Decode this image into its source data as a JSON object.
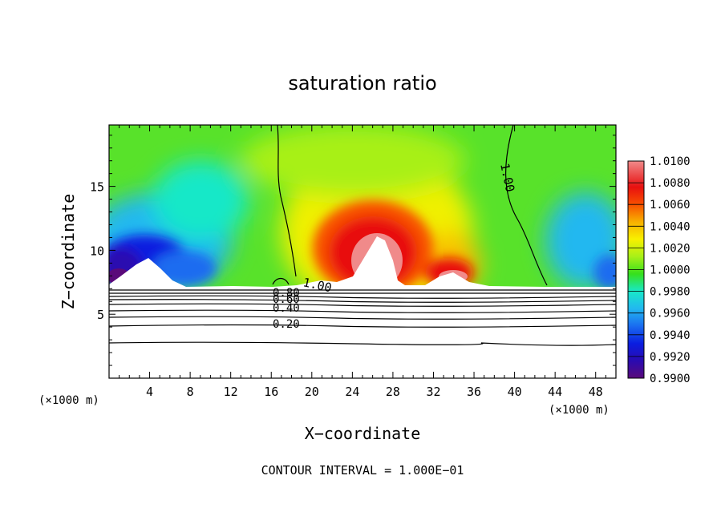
{
  "chart_data": {
    "type": "heatmap",
    "title": "saturation ratio",
    "xlabel": "X−coordinate",
    "ylabel": "Z−coordinate",
    "x_unit_left": "(×1000 m)",
    "x_unit_right": "(×1000 m)",
    "xlim": [
      0,
      50
    ],
    "ylim": [
      0,
      19.8
    ],
    "x_ticks": [
      4,
      8,
      12,
      16,
      20,
      24,
      28,
      32,
      36,
      40,
      44,
      48
    ],
    "y_ticks": [
      5,
      10,
      15
    ],
    "colorbar": {
      "levels": [
        0.99,
        1.01
      ],
      "labels": [
        "1.0100",
        "1.0080",
        "1.0060",
        "1.0040",
        "1.0020",
        "1.0000",
        "0.9980",
        "0.9960",
        "0.9940",
        "0.9920",
        "0.9900"
      ],
      "colors": [
        "#5a0a7a",
        "#2a0ab0",
        "#0a1ee0",
        "#1a6cf0",
        "#22b8f0",
        "#18e8c8",
        "#36e01c",
        "#a8f018",
        "#f8f000",
        "#f8b000",
        "#f85000",
        "#e81010",
        "#f08a8a"
      ]
    },
    "contour_labels": [
      {
        "text": "1.00",
        "x": 19.2,
        "y": 7.2
      },
      {
        "text": "1.00",
        "x": 39.4,
        "y": 14.8
      },
      {
        "text": "0.80",
        "x": 17.6,
        "y": 6.9
      },
      {
        "text": "0.60",
        "x": 17.6,
        "y": 6.1
      },
      {
        "text": "0.40",
        "x": 17.6,
        "y": 5.6
      },
      {
        "text": "0.20",
        "x": 17.6,
        "y": 4.3
      }
    ],
    "footer": "CONTOUR INTERVAL = 1.000E−01"
  }
}
